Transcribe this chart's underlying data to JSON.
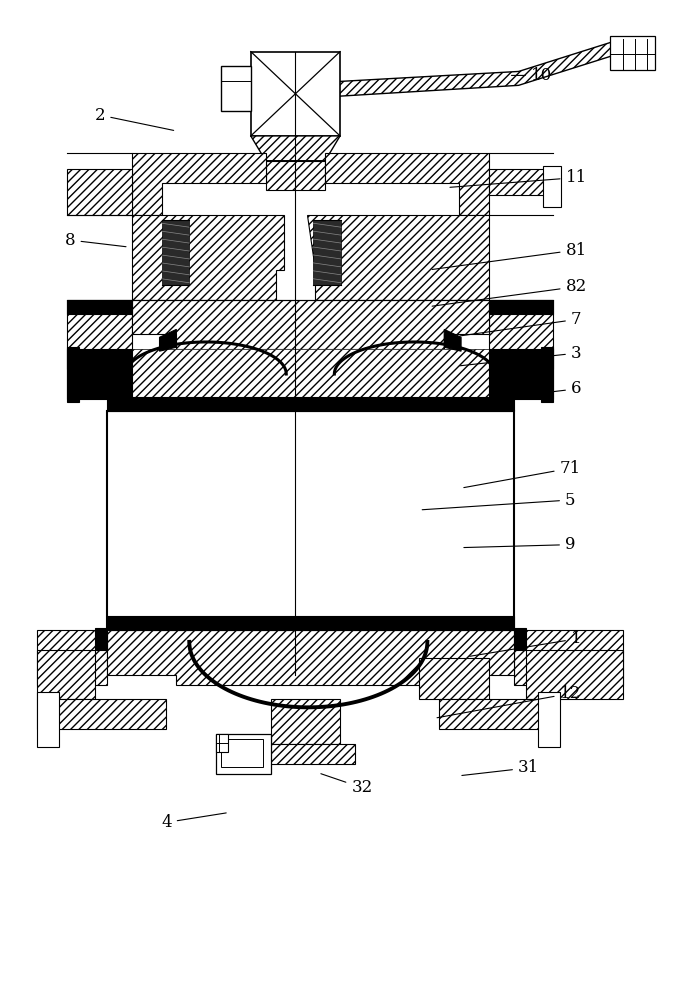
{
  "figsize": [
    6.96,
    10.0
  ],
  "dpi": 100,
  "bg_color": "#ffffff",
  "annotations": [
    [
      "2",
      98,
      112,
      175,
      128
    ],
    [
      "8",
      68,
      238,
      127,
      245
    ],
    [
      "81",
      578,
      248,
      430,
      268
    ],
    [
      "82",
      578,
      285,
      430,
      305
    ],
    [
      "7",
      578,
      318,
      458,
      335
    ],
    [
      "3",
      578,
      352,
      458,
      365
    ],
    [
      "6",
      578,
      388,
      478,
      400
    ],
    [
      "10",
      543,
      72,
      510,
      72
    ],
    [
      "11",
      578,
      175,
      448,
      185
    ],
    [
      "71",
      572,
      468,
      462,
      488
    ],
    [
      "5",
      572,
      500,
      420,
      510
    ],
    [
      "9",
      572,
      545,
      462,
      548
    ],
    [
      "1",
      578,
      640,
      468,
      658
    ],
    [
      "12",
      572,
      695,
      435,
      720
    ],
    [
      "32",
      362,
      790,
      318,
      775
    ],
    [
      "31",
      530,
      770,
      460,
      778
    ],
    [
      "4",
      165,
      825,
      228,
      815
    ]
  ]
}
